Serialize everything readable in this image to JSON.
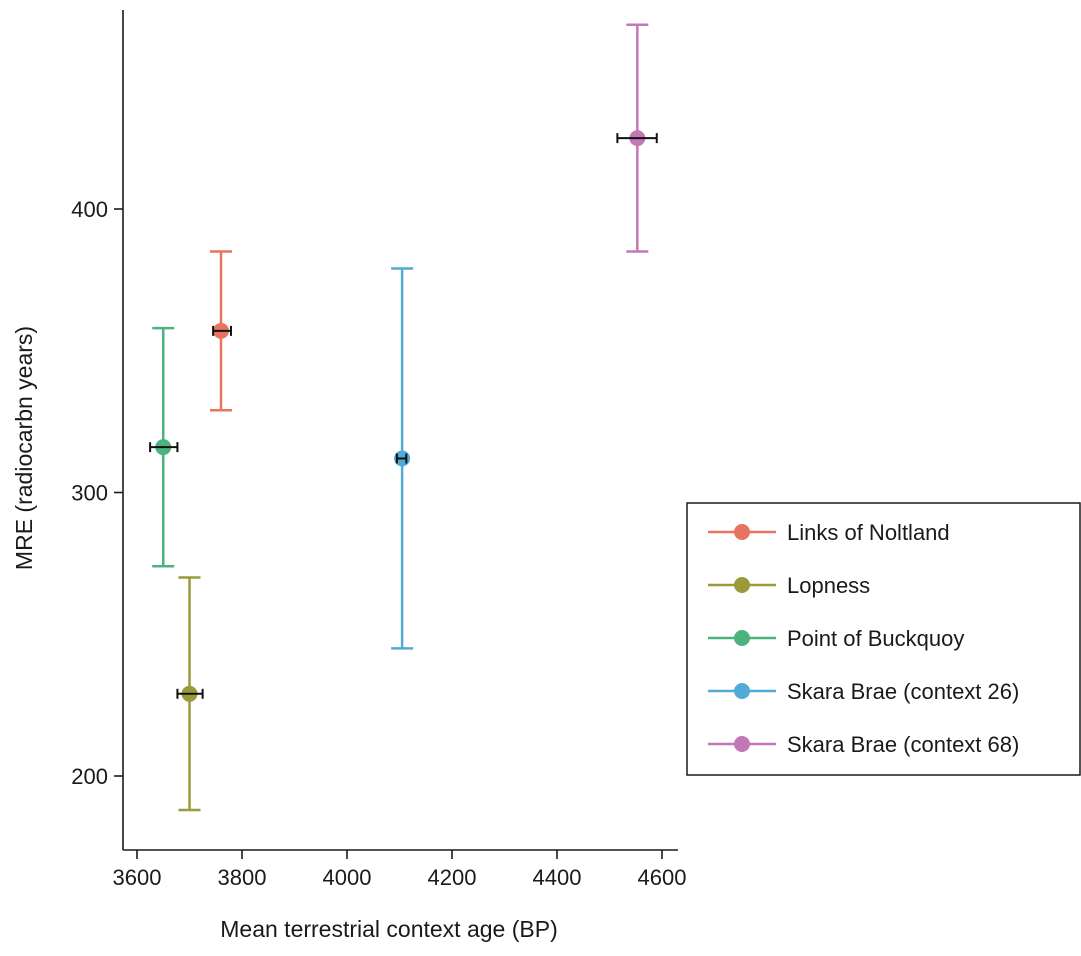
{
  "chart_data": {
    "type": "scatter",
    "xlabel": "Mean terrestrial context age (BP)",
    "ylabel": "MRE (radiocarbn years)",
    "xlim": [
      3575,
      4635
    ],
    "ylim": [
      175,
      470
    ],
    "xticks": [
      3600,
      3800,
      4000,
      4200,
      4400,
      4600
    ],
    "yticks": [
      200,
      300,
      400
    ],
    "legend_position": "right",
    "series": [
      {
        "name": "Links of Noltland",
        "color": "#e8735e",
        "x": 3760,
        "y": 357,
        "ylow": 329,
        "yhigh": 385,
        "xlow": 3745,
        "xhigh": 3779
      },
      {
        "name": "Lopness",
        "color": "#9a9a3c",
        "x": 3700,
        "y": 229,
        "ylow": 188,
        "yhigh": 270,
        "xlow": 3677,
        "xhigh": 3725
      },
      {
        "name": "Point of Buckquoy",
        "color": "#4db37e",
        "x": 3650,
        "y": 316,
        "ylow": 274,
        "yhigh": 358,
        "xlow": 3625,
        "xhigh": 3677
      },
      {
        "name": "Skara Brae (context 26)",
        "color": "#52aad6",
        "x": 4105,
        "y": 312,
        "ylow": 245,
        "yhigh": 379,
        "xlow": 4095,
        "xhigh": 4113
      },
      {
        "name": "Skara Brae (context 68)",
        "color": "#c377b5",
        "x": 4553,
        "y": 425,
        "ylow": 385,
        "yhigh": 465,
        "xlow": 4515,
        "xhigh": 4590
      }
    ]
  }
}
